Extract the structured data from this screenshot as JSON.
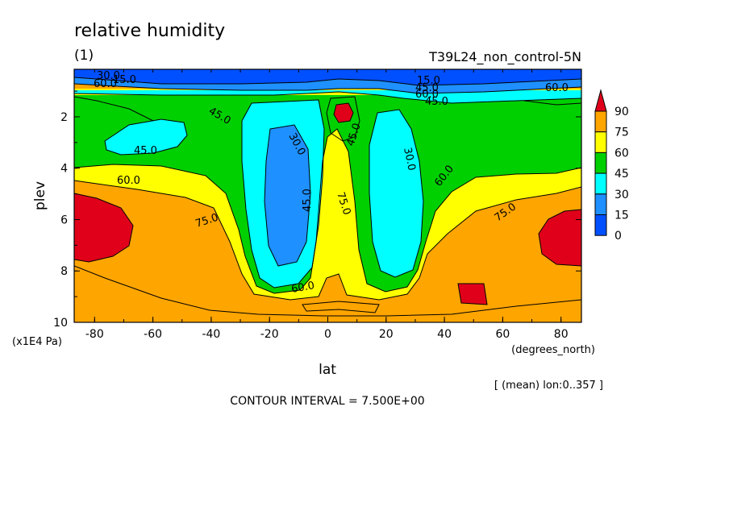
{
  "chart_data": {
    "type": "heatmap",
    "title": "relative humidity",
    "subtitle": "(1)",
    "run_label": "T39L24_non_control-5N",
    "xlabel": "lat",
    "x_unit": "(degrees_north)",
    "ylabel": "plev",
    "y_unit": "(x1E4 Pa)",
    "x_ticks": [
      "-80",
      "-60",
      "-40",
      "-20",
      "0",
      "20",
      "40",
      "60",
      "80"
    ],
    "x_tick_values": [
      -80,
      -60,
      -40,
      -20,
      0,
      20,
      40,
      60,
      80
    ],
    "y_ticks": [
      "2",
      "4",
      "6",
      "8",
      "10"
    ],
    "y_tick_values": [
      2,
      4,
      6,
      8,
      10
    ],
    "xlim": [
      -87,
      87
    ],
    "ylim": [
      10,
      0.15
    ],
    "y_inverted": true,
    "averaging_note": "[ (mean) lon:0..357 ]",
    "contour_interval_text": "CONTOUR INTERVAL = 7.500E+00",
    "colorbar": {
      "levels": [
        "90",
        "75",
        "60",
        "45",
        "30",
        "15",
        "0"
      ],
      "colors": [
        "#e0001a",
        "#ffa500",
        "#ffff00",
        "#00d000",
        "#00ffff",
        "#1e90ff",
        "#0050ff"
      ]
    },
    "contour_labels": [
      "15.0",
      "60.0",
      "45.0",
      "30.0",
      "45.0",
      "60.0",
      "75.0",
      "45.0",
      "30.0",
      "45.0",
      "60.0",
      "75.0",
      "60.0",
      "45.0",
      "45.0",
      "60.0",
      "75.0",
      "60.0",
      "15.0",
      "30.0"
    ]
  }
}
